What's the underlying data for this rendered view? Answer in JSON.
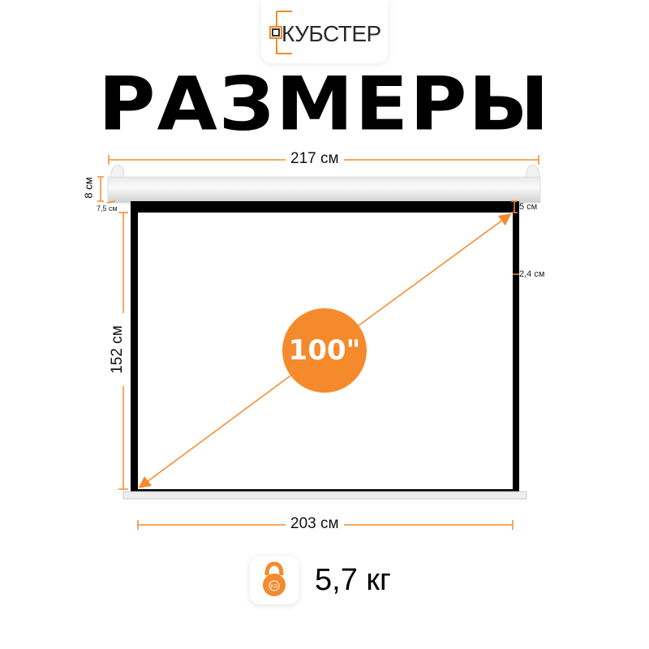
{
  "brand": {
    "name": "КУБСТЕР"
  },
  "title": "РАЗМЕРЫ",
  "dimensions": {
    "total_width": "217 см",
    "screen_width": "203 см",
    "screen_height": "152 см",
    "housing_height": "8 см",
    "housing_depth": "7,5 см",
    "top_border": "5 см",
    "side_border": "2,4 см"
  },
  "diagonal": "100\"",
  "weight": {
    "value": "5,7 кг",
    "icon": "kettlebell-icon",
    "icon_text": "KG"
  },
  "colors": {
    "accent": "#f58a2c",
    "frame": "#000000"
  }
}
